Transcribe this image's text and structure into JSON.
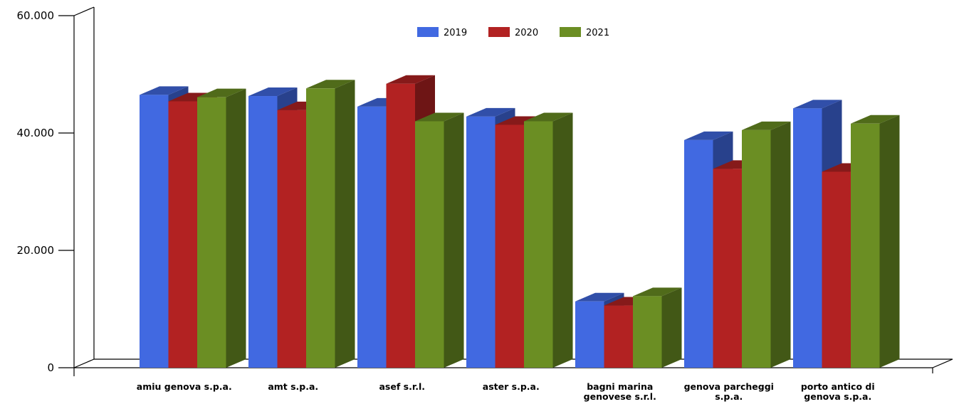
{
  "chart_data": {
    "type": "bar",
    "title": "",
    "xlabel": "",
    "ylabel": "",
    "ylim": [
      0,
      60000
    ],
    "y_ticks": [
      "0",
      "20.000",
      "40.000",
      "60.000"
    ],
    "y_tick_values": [
      0,
      20000,
      40000,
      60000
    ],
    "grid": false,
    "legend_position": "top-center",
    "style": "3d-columns",
    "categories": [
      [
        "amiu genova  s.p.a."
      ],
      [
        "amt s.p.a."
      ],
      [
        "asef s.r.l."
      ],
      [
        "aster s.p.a."
      ],
      [
        "bagni marina",
        "genovese  s.r.l."
      ],
      [
        "genova parcheggi",
        "s.p.a."
      ],
      [
        "porto antico di",
        "genova s.p.a."
      ]
    ],
    "series": [
      {
        "name": "2019",
        "color": "#4169e1",
        "values": [
          46500,
          46300,
          44500,
          42800,
          11300,
          38800,
          44200
        ]
      },
      {
        "name": "2020",
        "color": "#b22222",
        "values": [
          45400,
          43900,
          48400,
          41400,
          10600,
          33900,
          33400
        ]
      },
      {
        "name": "2021",
        "color": "#6b8e23",
        "values": [
          46100,
          47600,
          42000,
          42000,
          12200,
          40500,
          41600
        ]
      }
    ]
  }
}
